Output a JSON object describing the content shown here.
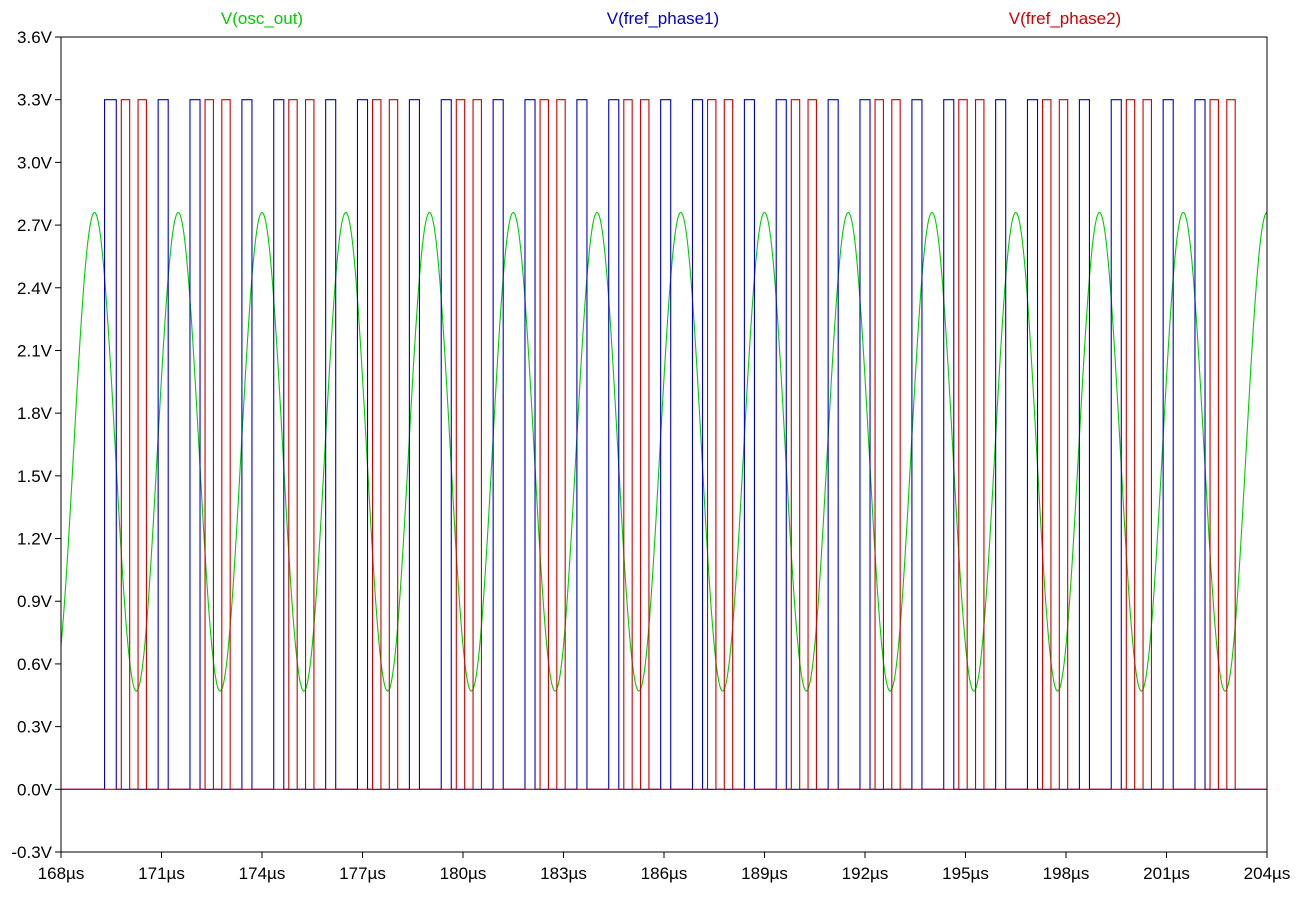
{
  "chart_data": {
    "type": "line",
    "x_unit": "µs",
    "y_unit": "V",
    "xlim": [
      168,
      204
    ],
    "ylim": [
      -0.3,
      3.6
    ],
    "x_ticks": [
      "168µs",
      "171µs",
      "174µs",
      "177µs",
      "180µs",
      "183µs",
      "186µs",
      "189µs",
      "192µs",
      "195µs",
      "198µs",
      "201µs",
      "204µs"
    ],
    "y_ticks": [
      "3.6V",
      "3.3V",
      "3.0V",
      "2.7V",
      "2.4V",
      "2.1V",
      "1.8V",
      "1.5V",
      "1.2V",
      "0.9V",
      "0.6V",
      "0.3V",
      "0.0V",
      "-0.3V"
    ],
    "grid": false,
    "legend_position": "top",
    "series": [
      {
        "name": "V(osc_out)",
        "color": "#00cc00",
        "kind": "sine",
        "period": 2.5,
        "min": 0.47,
        "max": 2.76,
        "first_peak_x": 169.0,
        "x_start": 168.0,
        "x_end": 204.0
      },
      {
        "name": "V(fref_phase1)",
        "color": "#0000cc",
        "kind": "pulse",
        "low": 0.0,
        "high": 3.3,
        "pulses": [
          [
            169.3,
            169.65
          ],
          [
            170.9,
            171.2
          ],
          [
            171.85,
            172.15
          ],
          [
            173.4,
            173.7
          ],
          [
            174.35,
            174.65
          ],
          [
            175.9,
            176.2
          ],
          [
            176.85,
            177.15
          ],
          [
            178.4,
            178.7
          ],
          [
            179.35,
            179.65
          ],
          [
            180.9,
            181.2
          ],
          [
            181.85,
            182.15
          ],
          [
            183.4,
            183.7
          ],
          [
            184.35,
            184.65
          ],
          [
            185.9,
            186.2
          ],
          [
            186.85,
            187.15
          ],
          [
            188.4,
            188.7
          ],
          [
            189.35,
            189.65
          ],
          [
            190.9,
            191.2
          ],
          [
            191.85,
            192.15
          ],
          [
            193.4,
            193.7
          ],
          [
            194.35,
            194.65
          ],
          [
            195.9,
            196.2
          ],
          [
            196.85,
            197.15
          ],
          [
            198.4,
            198.7
          ],
          [
            199.35,
            199.65
          ],
          [
            200.9,
            201.2
          ],
          [
            201.85,
            202.15
          ]
        ]
      },
      {
        "name": "V(fref_phase2)",
        "color": "#cc0000",
        "kind": "pulse",
        "low": 0.0,
        "high": 3.3,
        "pulses": [
          [
            169.8,
            170.05
          ],
          [
            170.3,
            170.55
          ],
          [
            172.3,
            172.55
          ],
          [
            172.8,
            173.05
          ],
          [
            174.8,
            175.05
          ],
          [
            175.3,
            175.55
          ],
          [
            177.3,
            177.55
          ],
          [
            177.8,
            178.05
          ],
          [
            179.8,
            180.05
          ],
          [
            180.3,
            180.55
          ],
          [
            182.3,
            182.55
          ],
          [
            182.8,
            183.05
          ],
          [
            184.8,
            185.05
          ],
          [
            185.3,
            185.55
          ],
          [
            187.3,
            187.55
          ],
          [
            187.8,
            188.05
          ],
          [
            189.8,
            190.05
          ],
          [
            190.3,
            190.55
          ],
          [
            192.3,
            192.55
          ],
          [
            192.8,
            193.05
          ],
          [
            194.8,
            195.05
          ],
          [
            195.3,
            195.55
          ],
          [
            197.3,
            197.55
          ],
          [
            197.8,
            198.05
          ],
          [
            199.8,
            200.05
          ],
          [
            200.3,
            200.55
          ],
          [
            202.3,
            202.55
          ],
          [
            202.8,
            203.05
          ]
        ]
      }
    ]
  }
}
